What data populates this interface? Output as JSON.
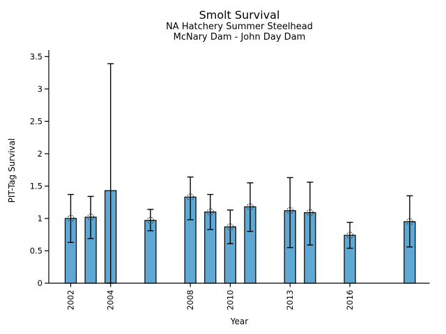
{
  "header": {
    "title": "Smolt Survival",
    "subtitle_line1": "NA Hatchery Summer Steelhead",
    "subtitle_line2": "McNary Dam - John Day Dam"
  },
  "chart_data": {
    "type": "bar",
    "title": "Smolt Survival",
    "subtitle1": "NA Hatchery Summer Steelhead",
    "subtitle2": "McNary Dam - John Day Dam",
    "xlabel": "Year",
    "ylabel": "PIT-Tag Survival",
    "legend": "none",
    "grid": false,
    "ylim": [
      0,
      3.6
    ],
    "xlim": [
      2000.9,
      2020.0
    ],
    "yticks": [
      0,
      0.5,
      1,
      1.5,
      2,
      2.5,
      3,
      3.5
    ],
    "ytick_labels": [
      "0",
      "0.5",
      "1",
      "1.5",
      "2",
      "2.5",
      "3",
      "3.5"
    ],
    "xticks": [
      2002,
      2004,
      2008,
      2010,
      2013,
      2016
    ],
    "xtick_labels": [
      "2002",
      "2004",
      "2008",
      "2010",
      "2013",
      "2016"
    ],
    "bar_width_years": 0.56,
    "colors": {
      "bar_fill": "#5FA8D3",
      "bar_edge": "#000000",
      "error_bar": "#000000",
      "marker_edge": "#333333",
      "axis": "#000000"
    },
    "marker_style": "open-circle-at-bar-top",
    "points": [
      {
        "year": 2002,
        "value": 1.0,
        "err_low": 0.63,
        "err_high": 1.37,
        "marker": true
      },
      {
        "year": 2003,
        "value": 1.02,
        "err_low": 0.69,
        "err_high": 1.34,
        "marker": true
      },
      {
        "year": 2004,
        "value": 1.43,
        "err_low": 0.0,
        "err_high": 3.39,
        "marker": false
      },
      {
        "year": 2006,
        "value": 0.97,
        "err_low": 0.81,
        "err_high": 1.14,
        "marker": true
      },
      {
        "year": 2008,
        "value": 1.33,
        "err_low": 0.98,
        "err_high": 1.64,
        "marker": true
      },
      {
        "year": 2009,
        "value": 1.1,
        "err_low": 0.83,
        "err_high": 1.37,
        "marker": true
      },
      {
        "year": 2010,
        "value": 0.87,
        "err_low": 0.61,
        "err_high": 1.13,
        "marker": true
      },
      {
        "year": 2011,
        "value": 1.18,
        "err_low": 0.8,
        "err_high": 1.55,
        "marker": true
      },
      {
        "year": 2013,
        "value": 1.12,
        "err_low": 0.55,
        "err_high": 1.63,
        "marker": true
      },
      {
        "year": 2014,
        "value": 1.09,
        "err_low": 0.59,
        "err_high": 1.56,
        "marker": true
      },
      {
        "year": 2016,
        "value": 0.74,
        "err_low": 0.54,
        "err_high": 0.94,
        "marker": true
      },
      {
        "year": 2019,
        "value": 0.95,
        "err_low": 0.56,
        "err_high": 1.35,
        "marker": true
      }
    ]
  }
}
